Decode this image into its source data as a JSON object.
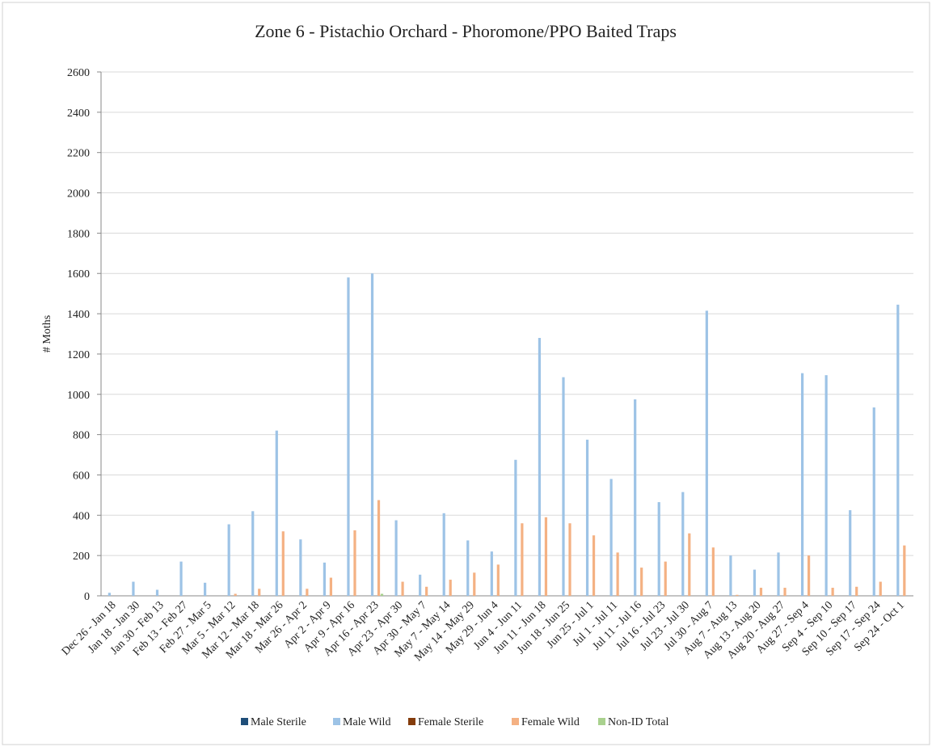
{
  "chart_data": {
    "type": "bar",
    "title": "Zone 6 - Pistachio Orchard - Phoromone/PPO Baited Traps",
    "y_label": "# Moths",
    "categories": [
      "Dec 26 - Jan 18",
      "Jan 18 - Jan 30",
      "Jan 30 - Feb 13",
      "Feb 13 - Feb 27",
      "Feb 27 - Mar 5",
      "Mar 5 - Mar 12",
      "Mar 12 - Mar 18",
      "Mar 18 - Mar 26",
      "Mar 26 - Apr 2",
      "Apr 2 - Apr 9",
      "Apr 9 - Apr 16",
      "Apr 16 - Apr 23",
      "Apr 23 - Apr 30",
      "Apr 30 - May 7",
      "May 7 - May 14",
      "May 14 - May 29",
      "May 29 - Jun 4",
      "Jun 4 - Jun 11",
      "Jun 11 - Jun 18",
      "Jun 18 - Jun 25",
      "Jun 25 - Jul 1",
      "Jul 1 - Jul 11",
      "Jul 11 - Jul 16",
      "Jul 16 - Jul 23",
      "Jul 23 - Jul 30",
      "Jul 30 - Aug 7",
      "Aug 7 - Aug 13",
      "Aug 13 - Aug 20",
      "Aug 20 - Aug 27",
      "Aug 27 - Sep 4",
      "Sep 4 - Sep 10",
      "Sep 10 - Sep 17",
      "Sep 17 - Sep 24",
      "Sep 24 - Oct 1"
    ],
    "series": [
      {
        "name": "Male Sterile",
        "color": "#1f4e79",
        "values": [
          0,
          0,
          0,
          0,
          0,
          0,
          0,
          0,
          0,
          0,
          0,
          0,
          0,
          0,
          0,
          0,
          0,
          0,
          0,
          0,
          0,
          0,
          0,
          0,
          0,
          0,
          0,
          0,
          0,
          0,
          0,
          0,
          0,
          0
        ]
      },
      {
        "name": "Male Wild",
        "color": "#9dc3e6",
        "values": [
          15,
          70,
          30,
          170,
          65,
          355,
          420,
          820,
          280,
          165,
          1580,
          1600,
          375,
          105,
          410,
          275,
          220,
          675,
          1280,
          1085,
          775,
          580,
          975,
          465,
          515,
          1415,
          200,
          130,
          215,
          1105,
          1095,
          425,
          935,
          1445
        ]
      },
      {
        "name": "Female Sterile",
        "color": "#843c0c",
        "values": [
          0,
          0,
          0,
          0,
          0,
          0,
          0,
          0,
          0,
          0,
          0,
          0,
          0,
          0,
          0,
          0,
          0,
          0,
          0,
          0,
          0,
          0,
          0,
          0,
          0,
          0,
          0,
          0,
          0,
          0,
          0,
          0,
          0,
          0
        ]
      },
      {
        "name": "Female Wild",
        "color": "#f4b183",
        "values": [
          0,
          0,
          0,
          0,
          0,
          10,
          35,
          320,
          35,
          90,
          325,
          475,
          70,
          45,
          80,
          115,
          155,
          360,
          390,
          360,
          300,
          215,
          140,
          170,
          310,
          240,
          5,
          40,
          40,
          200,
          40,
          45,
          70,
          250
        ]
      },
      {
        "name": "Non-ID Total",
        "color": "#a9d18e",
        "values": [
          0,
          0,
          0,
          0,
          0,
          0,
          0,
          0,
          0,
          0,
          0,
          10,
          0,
          0,
          0,
          0,
          0,
          0,
          0,
          0,
          0,
          0,
          0,
          0,
          0,
          0,
          0,
          0,
          0,
          0,
          0,
          0,
          0,
          0
        ]
      }
    ],
    "ylim": [
      0,
      2600
    ],
    "yticks": [
      0,
      200,
      400,
      600,
      800,
      1000,
      1200,
      1400,
      1600,
      1800,
      2000,
      2200,
      2400,
      2600
    ],
    "grid": true,
    "legend": "bottom"
  }
}
